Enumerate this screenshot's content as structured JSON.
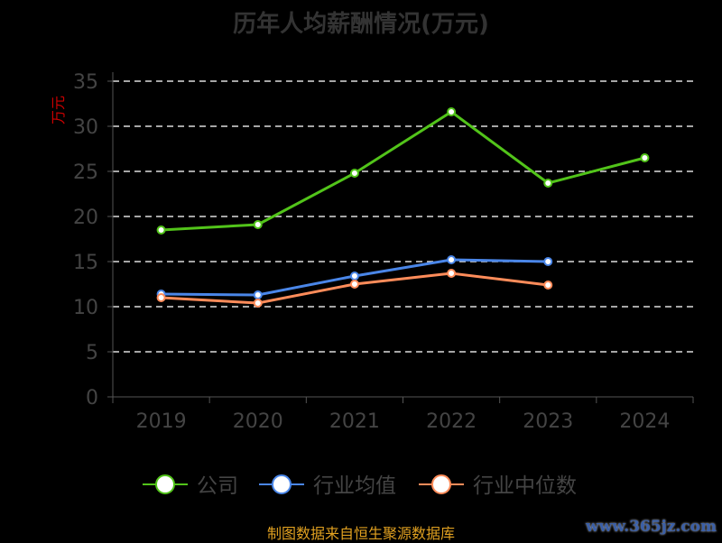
{
  "chart_data": {
    "type": "line",
    "title": "历年人均薪酬情况(万元)",
    "ylabel": "万元",
    "xlabel": "",
    "ylim": [
      0,
      35
    ],
    "yticks": [
      0,
      5,
      10,
      15,
      20,
      25,
      30,
      35
    ],
    "categories": [
      "2019",
      "2020",
      "2021",
      "2022",
      "2023",
      "2024"
    ],
    "grid": true,
    "legend_position": "bottom",
    "series": [
      {
        "name": "公司",
        "color": "#52c41a",
        "values": [
          18.5,
          19.1,
          24.8,
          31.6,
          23.7,
          26.5
        ]
      },
      {
        "name": "行业均值",
        "color": "#4a86e8",
        "values": [
          11.4,
          11.3,
          13.4,
          15.2,
          15.0,
          null
        ]
      },
      {
        "name": "行业中位数",
        "color": "#ff8c5a",
        "values": [
          11.0,
          10.4,
          12.5,
          13.7,
          12.4,
          null
        ]
      }
    ]
  },
  "footer": "制图数据来自恒生聚源数据库",
  "watermark": "www.365jz.com"
}
